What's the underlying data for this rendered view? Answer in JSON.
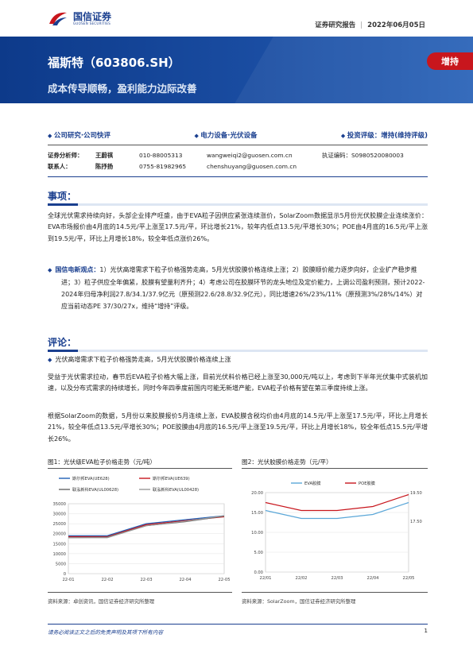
{
  "header": {
    "logo_name": "国信证券",
    "logo_sub": "GUOSEN SECURITIES",
    "report_type": "证券研究报告",
    "date": "2022年06月05日"
  },
  "banner": {
    "title": "福斯特（603806.SH）",
    "subtitle": "成本传导顺畅，盈利能力边际改善",
    "rating": "增持"
  },
  "categories": [
    "公司研究·公司快评",
    "电力设备·光伏设备",
    "投资评级：增持(维持评级)"
  ],
  "analysts": [
    {
      "role": "证券分析师：",
      "name": "王蔚祺",
      "phone": "010-88005313",
      "email": "wangweiqi2@guosen.com.cn",
      "cert": "执证编码：S0980520080003"
    },
    {
      "role": "联系人：",
      "name": "陈抒扬",
      "phone": "0755-81982965",
      "email": "chenshuyang@guosen.com.cn",
      "cert": ""
    }
  ],
  "section1": {
    "heading": "事项：",
    "para": "全球光伏需求持续向好，头部企业排产旺盛，由于EVA粒子因供应紧张连续涨价，SolarZoom数据显示5月份光伏胶膜企业连续涨价：EVA市场报价由4月底的14.5元/平上涨至17.5元/平，环比增长21%，较年内低点13.5元/平增长30%；POE由4月底的16.5元/平上涨到19.5元/平，环比上月增长18%，较全年低点涨价26%。",
    "bullet_label": "国信电新观点：",
    "bullet_text": "1）光伏高增需求下粒子价格强势走高，5月光伏胶膜价格连续上涨；2）胶膜顺价能力逐步向好，企业扩产稳步推进；3）粒子供应全年偏紧，胶膜有望量利齐升；4）考虑公司在胶膜环节的龙头地位及定价能力，上调公司盈利预测，预计2022-2024年归母净利润27.8/34.1/37.9亿元（原预测22.6/28.8/32.9亿元），同比增速26%/23%/11%（原预测3%/28%/14%）对应当前动态PE 37/30/27x，维持“增持”评级。"
  },
  "section2": {
    "heading": "评论：",
    "sub_bullet": "光伏高增需求下粒子价格强势走高，5月光伏胶膜价格连续上涨",
    "para1": "受益于光伏需求拉动，春节后EVA粒子价格大幅上涨，目前光伏料价格已经上涨至30,000元/吨以上，考虑到下半年光伏集中式装机加速，以及分布式需求的持续增长，同时今年四季度前国内可能无新增产能，EVA粒子价格有望在第三季度持续上涨。",
    "para2": "根据SolarZoom的数据，5月份以来胶膜报价5月连续上涨，EVA胶膜含税均价由4月底的14.5元/平上涨至17.5元/平，环比上月增长21%，较全年低点13.5元/平增长30%；POE胶膜由4月底的16.5元/平上涨至19.5元/平，环比上月增长18%，较全年低点15.5元/平增长26%。"
  },
  "figure1": {
    "title": "图1：光伏级EVA粒子价格走势（元/吨）",
    "source": "资料来源：卓创资讯，国信证券经济研究所整理"
  },
  "figure2": {
    "title": "图2：光伏胶膜价格走势（元/平）",
    "source": "资料来源：SolarZoom，国信证券经济研究所整理"
  },
  "chart_data": [
    {
      "type": "line",
      "title": "图1：光伏级EVA粒子价格走势（元/吨）",
      "categories": [
        "22-01",
        "22-02",
        "22-03",
        "22-04",
        "22-05"
      ],
      "ylim": [
        0,
        35000
      ],
      "yticks": [
        0,
        5000,
        10000,
        15000,
        20000,
        25000,
        30000,
        35000
      ],
      "legend_position": "top",
      "series": [
        {
          "name": "斯尔邦EVA(UE628)",
          "color": "#1f5fb5",
          "values": [
            19000,
            19000,
            25000,
            27000,
            29000
          ]
        },
        {
          "name": "斯尔邦EVA(UE639)",
          "color": "#c8161d",
          "values": [
            18500,
            18500,
            24500,
            26500,
            28500
          ]
        },
        {
          "name": "联泓新科EVA(UL00628)",
          "color": "#666666",
          "values": [
            18000,
            18200,
            24000,
            26000,
            28800
          ]
        },
        {
          "name": "联泓新科EVA(UL00428)",
          "color": "#999999",
          "values": [
            18000,
            18000,
            24000,
            26200,
            29000
          ]
        }
      ]
    },
    {
      "type": "line",
      "title": "图2：光伏胶膜价格走势（元/平）",
      "categories": [
        "22/01",
        "22/02",
        "22/03",
        "22/04",
        "22/05"
      ],
      "ylim": [
        0,
        20
      ],
      "yticks": [
        0,
        5,
        10,
        15,
        20
      ],
      "legend_position": "top",
      "annotations": [
        "19.50",
        "17.50"
      ],
      "series": [
        {
          "name": "EVA胶膜",
          "color": "#5ba7d8",
          "values": [
            15.5,
            13.5,
            13.5,
            14.5,
            17.5
          ]
        },
        {
          "name": "POE胶膜",
          "color": "#c8161d",
          "values": [
            17.5,
            15.5,
            15.5,
            16.5,
            19.5
          ]
        }
      ]
    }
  ],
  "footer": {
    "disclaimer": "请务必阅读正文之后的免责声明及其项下所有内容",
    "page": "1"
  },
  "colors": {
    "brand": "#1a3f8f",
    "accent_red": "#c8161d"
  }
}
